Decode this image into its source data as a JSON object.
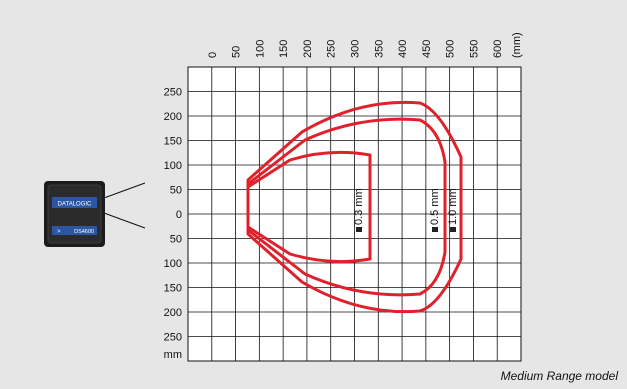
{
  "caption": "Medium Range model",
  "colors": {
    "background": "#e6e6e6",
    "grid_fill": "#ffffff",
    "grid_line": "#111111",
    "zone_outline": "#e0202a",
    "device_body": "#1c1c1c",
    "device_label": "#2b56a3"
  },
  "reader": {
    "brand_label": "DATALOGIC",
    "model_label": "DS4600",
    "arrow_glyph": ">"
  },
  "x_axis": {
    "unit": "(mm)",
    "ticks": [
      "0",
      "50",
      "100",
      "150",
      "200",
      "250",
      "300",
      "350",
      "400",
      "450",
      "500",
      "550",
      "600"
    ]
  },
  "y_axis": {
    "unit": "mm",
    "ticks": [
      "250",
      "200",
      "150",
      "100",
      "50",
      "0",
      "50",
      "100",
      "150",
      "200",
      "250"
    ]
  },
  "zones": [
    {
      "label": "0.3 mm",
      "max_distance_mm": 350,
      "max_half_width_mm": 100
    },
    {
      "label": "0.5 mm",
      "max_distance_mm": 500,
      "max_half_width_mm": 170
    },
    {
      "label": "1.0 mm",
      "max_distance_mm": 530,
      "max_half_width_mm": 205
    }
  ]
}
